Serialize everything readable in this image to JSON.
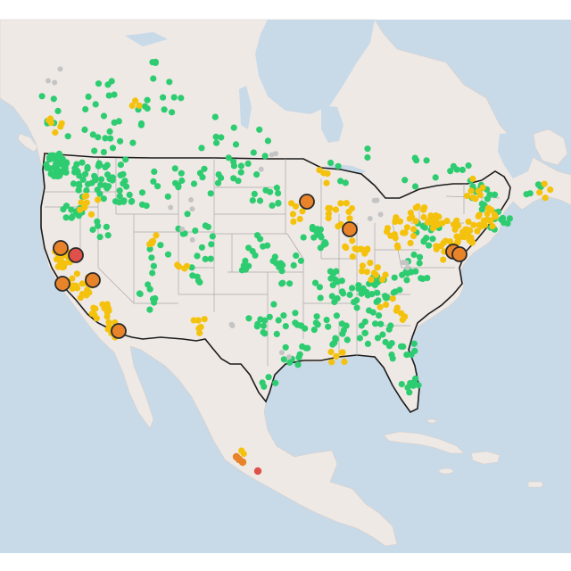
{
  "map": {
    "colors": {
      "ocean": "#c8d9e8",
      "land": "#efe9e5",
      "land_outside": "#ede6e1",
      "lake": "#c8d9e8",
      "state_border": "#a8a8a8",
      "country_border": "#1c1c1c",
      "page_background": "#ffffff"
    },
    "legend": [],
    "marker_categories": [
      {
        "id": "good",
        "color": "#2ecc71",
        "icon": "circle-marker"
      },
      {
        "id": "moderate",
        "color": "#f4c20d",
        "icon": "circle-marker"
      },
      {
        "id": "unhealthy-sensitive",
        "color": "#e8832a",
        "icon": "large-circle-marker"
      },
      {
        "id": "unhealthy",
        "color": "#e0504a",
        "icon": "large-circle-marker"
      },
      {
        "id": "no-data",
        "color": "#c4c4c4",
        "icon": "circle-marker"
      }
    ]
  }
}
